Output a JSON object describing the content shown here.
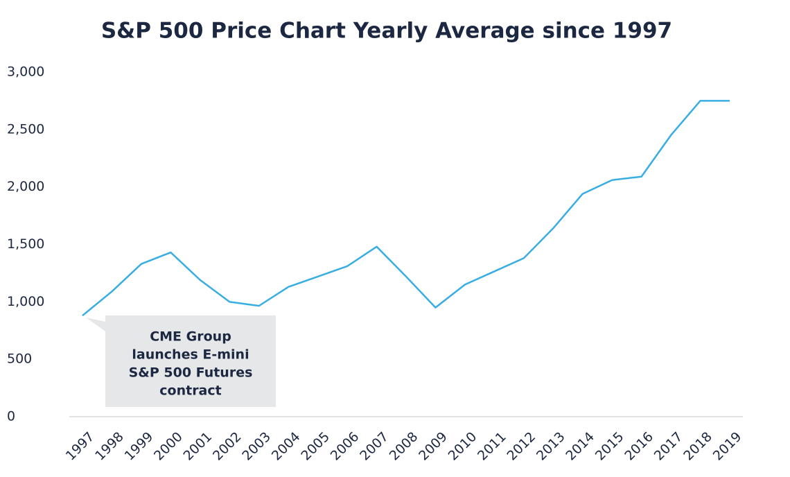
{
  "chart_data": {
    "type": "line",
    "title": "S&P 500 Price Chart Yearly Average since 1997",
    "categories": [
      "1997",
      "1998",
      "1999",
      "2000",
      "2001",
      "2002",
      "2003",
      "2004",
      "2005",
      "2006",
      "2007",
      "2008",
      "2009",
      "2010",
      "2011",
      "2012",
      "2013",
      "2014",
      "2015",
      "2016",
      "2017",
      "2018",
      "2019"
    ],
    "series": [
      {
        "color": "#38ade2",
        "values": [
          880,
          1090,
          1330,
          1430,
          1190,
          1000,
          965,
          1130,
          1220,
          1310,
          1480,
          1220,
          950,
          1150,
          1265,
          1380,
          1640,
          1940,
          2060,
          2090,
          2450,
          2750,
          2750
        ]
      }
    ],
    "ylim": [
      0,
      3000
    ],
    "yticks": [
      0,
      500,
      {
        "value": 1000,
        "label": "1,000"
      },
      {
        "value": 1500,
        "label": "1,500"
      },
      {
        "value": 2000,
        "label": "2,000"
      },
      {
        "value": 2500,
        "label": "2,500"
      },
      {
        "value": 3000,
        "label": "3,000"
      }
    ],
    "grid": false,
    "annotation": [
      "CME Group",
      "launches E-mini",
      "S&P 500 Futures",
      "contract"
    ]
  }
}
